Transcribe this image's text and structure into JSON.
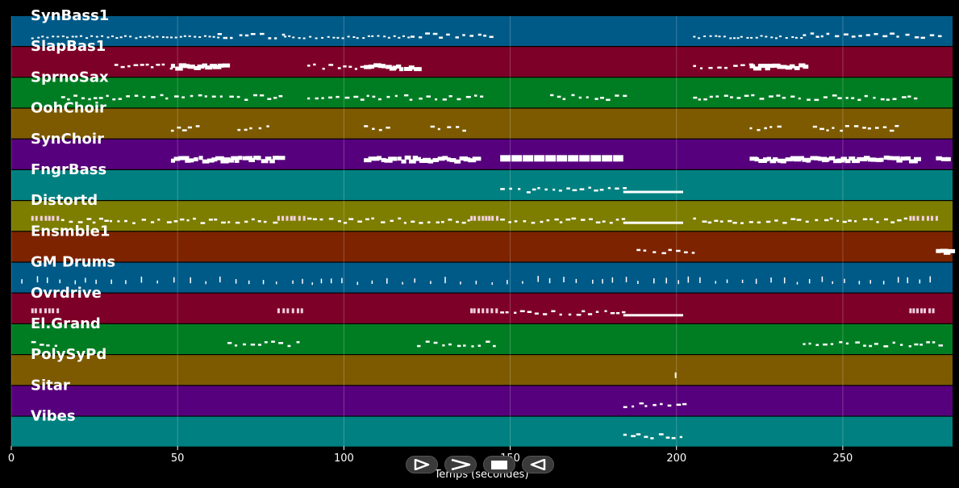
{
  "chart_data": {
    "type": "heatmap",
    "xlabel": "Temps (secondes)",
    "xlim": [
      0,
      283
    ],
    "xticks": [
      0,
      50,
      100,
      150,
      200,
      250
    ],
    "grid": true,
    "tracks": [
      {
        "name": "SynBass1",
        "color": "#005a87",
        "segments": [
          [
            6,
            62,
            "tiny"
          ],
          [
            62,
            82,
            "small"
          ],
          [
            82,
            120,
            "tiny"
          ],
          [
            120,
            145,
            "small"
          ],
          [
            205,
            238,
            "tiny"
          ],
          [
            238,
            280,
            "small"
          ]
        ]
      },
      {
        "name": "SlapBas1",
        "color": "#7d0028",
        "segments": [
          [
            31,
            48,
            "small"
          ],
          [
            48,
            64,
            "big"
          ],
          [
            89,
            106,
            "small"
          ],
          [
            106,
            122,
            "big"
          ],
          [
            205,
            222,
            "small"
          ],
          [
            222,
            238,
            "big"
          ]
        ]
      },
      {
        "name": "SprnoSax",
        "color": "#007d23",
        "segments": [
          [
            15,
            82,
            "small"
          ],
          [
            89,
            142,
            "small"
          ],
          [
            162,
            185,
            "small"
          ],
          [
            205,
            272,
            "small"
          ]
        ]
      },
      {
        "name": "OohChoir",
        "color": "#7d5a00",
        "segments": [
          [
            48,
            57,
            "small"
          ],
          [
            68,
            78,
            "small"
          ],
          [
            106,
            115,
            "small"
          ],
          [
            126,
            136,
            "small"
          ],
          [
            222,
            231,
            "small"
          ],
          [
            241,
            266,
            "small"
          ]
        ]
      },
      {
        "name": "SynChoir",
        "color": "#57007d",
        "segments": [
          [
            48,
            80,
            "big"
          ],
          [
            106,
            139,
            "big"
          ],
          [
            147,
            184,
            "block"
          ],
          [
            222,
            272,
            "big"
          ],
          [
            278,
            282,
            "big"
          ]
        ]
      },
      {
        "name": "FngrBass",
        "color": "#008080",
        "segments": [
          [
            147,
            184,
            "small"
          ],
          [
            184,
            202,
            "line"
          ]
        ]
      },
      {
        "name": "Distortd",
        "color": "#7d7d00",
        "segments": [
          [
            6,
            14,
            "chord"
          ],
          [
            15,
            80,
            "small"
          ],
          [
            80,
            88,
            "chord"
          ],
          [
            89,
            138,
            "small"
          ],
          [
            138,
            146,
            "chord"
          ],
          [
            147,
            184,
            "small"
          ],
          [
            184,
            202,
            "line"
          ],
          [
            205,
            270,
            "small"
          ],
          [
            270,
            278,
            "chord"
          ]
        ]
      },
      {
        "name": "Ensmble1",
        "color": "#7d2300",
        "segments": [
          [
            188,
            205,
            "small"
          ],
          [
            278,
            282,
            "big"
          ]
        ]
      },
      {
        "name": "GM Drums",
        "color": "#005a87",
        "segments": [
          [
            3,
            280,
            "drum"
          ]
        ]
      },
      {
        "name": "Ovrdrive",
        "color": "#7d0028",
        "segments": [
          [
            6,
            14,
            "chord"
          ],
          [
            80,
            88,
            "chord"
          ],
          [
            138,
            146,
            "chord"
          ],
          [
            147,
            184,
            "small"
          ],
          [
            184,
            202,
            "line"
          ],
          [
            270,
            278,
            "chord"
          ]
        ]
      },
      {
        "name": "El.Grand",
        "color": "#007d23",
        "segments": [
          [
            6,
            14,
            "small"
          ],
          [
            65,
            88,
            "small"
          ],
          [
            122,
            146,
            "small"
          ],
          [
            238,
            280,
            "small"
          ]
        ]
      },
      {
        "name": "PolySyPd",
        "color": "#7d5a00",
        "segments": [
          [
            199.5,
            201,
            "single"
          ]
        ]
      },
      {
        "name": "Sitar",
        "color": "#57007d",
        "segments": [
          [
            184,
            202,
            "small"
          ]
        ]
      },
      {
        "name": "Vibes",
        "color": "#008080",
        "segments": [
          [
            184,
            202,
            "small"
          ]
        ]
      }
    ]
  },
  "controls": [
    {
      "name": "play-icon"
    },
    {
      "name": "next-icon"
    },
    {
      "name": "stop-icon"
    },
    {
      "name": "previous-icon"
    }
  ]
}
